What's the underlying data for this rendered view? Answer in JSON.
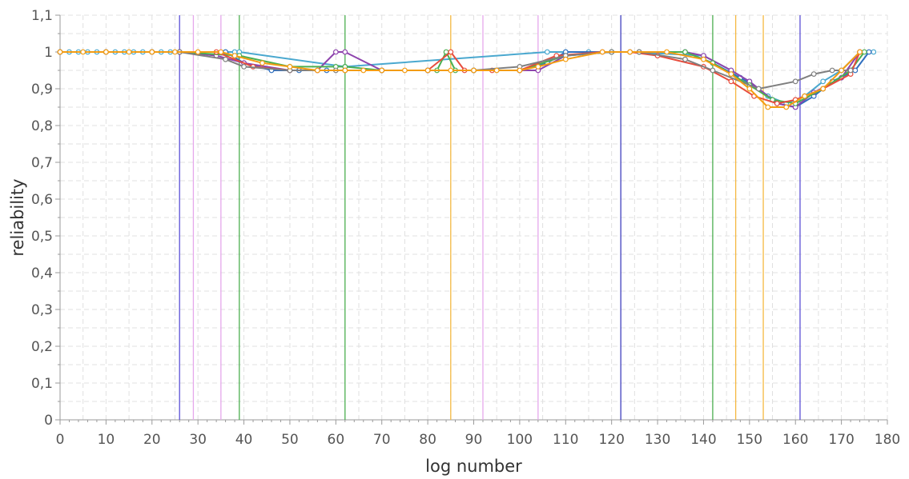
{
  "chart_data": {
    "type": "line",
    "title": "",
    "xlabel": "log number",
    "ylabel": "reliability",
    "xlim": [
      0,
      180
    ],
    "ylim": [
      0,
      1.1
    ],
    "x_ticks": [
      0,
      10,
      20,
      30,
      40,
      50,
      60,
      70,
      80,
      90,
      100,
      110,
      120,
      130,
      140,
      150,
      160,
      170,
      180
    ],
    "x_tick_labels": [
      "0",
      "10",
      "20",
      "30",
      "40",
      "50",
      "60",
      "70",
      "80",
      "90",
      "100",
      "110",
      "120",
      "130",
      "140",
      "150",
      "160",
      "170",
      "180"
    ],
    "y_ticks": [
      0,
      0.1,
      0.2,
      0.3,
      0.4,
      0.5,
      0.6,
      0.7,
      0.8,
      0.9,
      1.0,
      1.1
    ],
    "y_tick_labels": [
      "0",
      "0,1",
      "0,2",
      "0,3",
      "0,4",
      "0,5",
      "0,6",
      "0,7",
      "0,8",
      "0,9",
      "1",
      "1,1"
    ],
    "grid": true,
    "vertical_markers": [
      {
        "x": 26,
        "color": "#5b4fd6"
      },
      {
        "x": 29,
        "color": "#e6a8ec"
      },
      {
        "x": 35,
        "color": "#e6a8ec"
      },
      {
        "x": 39,
        "color": "#4caf50"
      },
      {
        "x": 62,
        "color": "#4caf50"
      },
      {
        "x": 85,
        "color": "#f5b942"
      },
      {
        "x": 92,
        "color": "#e6a8ec"
      },
      {
        "x": 104,
        "color": "#e6a8ec"
      },
      {
        "x": 122,
        "color": "#3f3fbf"
      },
      {
        "x": 142,
        "color": "#4caf50"
      },
      {
        "x": 147,
        "color": "#f5b942"
      },
      {
        "x": 153,
        "color": "#f5b942"
      },
      {
        "x": 161,
        "color": "#5b4fd6"
      }
    ],
    "series": [
      {
        "color": "#4aa8cf",
        "x": [
          0,
          2,
          4,
          6,
          8,
          10,
          12,
          14,
          16,
          18,
          20,
          22,
          24,
          26,
          36,
          38,
          39,
          62,
          106,
          110,
          115,
          120,
          124,
          140,
          146,
          150,
          154,
          158,
          162,
          166,
          170,
          174,
          177
        ],
        "y": [
          1,
          1,
          1,
          1,
          1,
          1,
          1,
          1,
          1,
          1,
          1,
          1,
          1,
          1,
          1,
          1,
          1,
          0.96,
          1,
          1,
          1,
          1,
          1,
          0.99,
          0.95,
          0.92,
          0.88,
          0.86,
          0.88,
          0.92,
          0.95,
          1,
          1
        ]
      },
      {
        "color": "#2f6fbf",
        "x": [
          0,
          10,
          20,
          26,
          36,
          40,
          46,
          52,
          58,
          62,
          70,
          80,
          90,
          100,
          106,
          110,
          120,
          126,
          136,
          142,
          148,
          152,
          156,
          160,
          164,
          168,
          173,
          176
        ],
        "y": [
          1,
          1,
          1,
          1,
          1,
          0.97,
          0.95,
          0.95,
          0.95,
          0.95,
          0.95,
          0.95,
          0.95,
          0.95,
          0.97,
          1,
          1,
          1,
          1,
          0.97,
          0.93,
          0.9,
          0.86,
          0.85,
          0.88,
          0.92,
          0.95,
          1
        ]
      },
      {
        "color": "#8e44ad",
        "x": [
          0,
          10,
          20,
          26,
          34,
          40,
          50,
          56,
          60,
          62,
          70,
          80,
          90,
          100,
          104,
          110,
          120,
          126,
          136,
          140,
          146,
          150,
          156,
          160,
          164,
          170,
          174
        ],
        "y": [
          1,
          1,
          1,
          1,
          0.99,
          0.97,
          0.95,
          0.95,
          1,
          1,
          0.95,
          0.95,
          0.95,
          0.95,
          0.95,
          0.99,
          1,
          1,
          1,
          0.99,
          0.95,
          0.92,
          0.86,
          0.85,
          0.89,
          0.93,
          1
        ]
      },
      {
        "color": "#4caf50",
        "x": [
          0,
          10,
          20,
          26,
          39,
          50,
          60,
          62,
          70,
          82,
          84,
          86,
          90,
          100,
          110,
          120,
          126,
          136,
          142,
          146,
          150,
          155,
          160,
          166,
          172,
          175
        ],
        "y": [
          1,
          1,
          1,
          1,
          0.99,
          0.96,
          0.96,
          0.96,
          0.95,
          0.95,
          1,
          0.95,
          0.95,
          0.95,
          0.99,
          1,
          1,
          1,
          0.97,
          0.94,
          0.91,
          0.87,
          0.86,
          0.9,
          0.95,
          1
        ]
      },
      {
        "color": "#e74c3c",
        "x": [
          0,
          10,
          20,
          26,
          34,
          42,
          50,
          56,
          62,
          70,
          80,
          85,
          88,
          94,
          100,
          108,
          118,
          124,
          130,
          140,
          146,
          151,
          156,
          160,
          166,
          172,
          174
        ],
        "y": [
          1,
          1,
          1,
          1,
          1,
          0.96,
          0.95,
          0.95,
          0.95,
          0.95,
          0.95,
          1,
          0.95,
          0.95,
          0.95,
          0.99,
          1,
          1,
          0.99,
          0.96,
          0.92,
          0.88,
          0.86,
          0.87,
          0.9,
          0.94,
          1
        ]
      },
      {
        "color": "#7f7f7f",
        "x": [
          0,
          10,
          20,
          26,
          36,
          40,
          50,
          60,
          70,
          80,
          90,
          100,
          110,
          120,
          126,
          136,
          142,
          152,
          160,
          164,
          168,
          172
        ],
        "y": [
          1,
          1,
          1,
          1,
          0.98,
          0.96,
          0.95,
          0.95,
          0.95,
          0.95,
          0.95,
          0.96,
          0.99,
          1,
          1,
          0.98,
          0.95,
          0.9,
          0.92,
          0.94,
          0.95,
          0.95
        ]
      },
      {
        "color": "#f39c12",
        "x": [
          0,
          5,
          10,
          15,
          20,
          25,
          30,
          35,
          38,
          44,
          50,
          56,
          62,
          66,
          70,
          75,
          80,
          85,
          90,
          95,
          100,
          104,
          110,
          118,
          124,
          132,
          140,
          146,
          150,
          154,
          158,
          162,
          166,
          170,
          174
        ],
        "y": [
          1,
          1,
          1,
          1,
          1,
          1,
          1,
          1,
          0.99,
          0.97,
          0.96,
          0.95,
          0.95,
          0.95,
          0.95,
          0.95,
          0.95,
          0.95,
          0.95,
          0.95,
          0.95,
          0.96,
          0.98,
          1,
          1,
          1,
          0.98,
          0.94,
          0.9,
          0.85,
          0.85,
          0.88,
          0.9,
          0.95,
          1
        ]
      }
    ]
  }
}
